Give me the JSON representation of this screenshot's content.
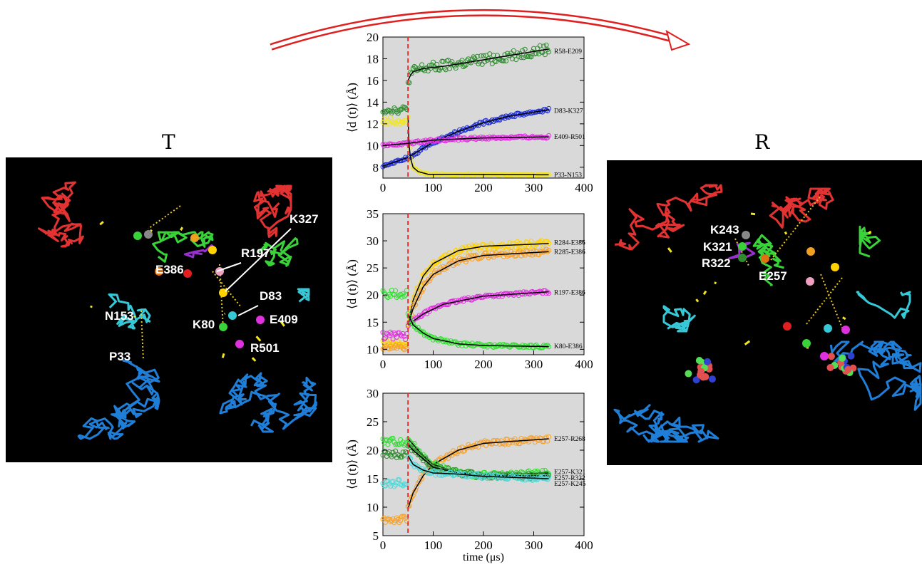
{
  "states": {
    "left": "T",
    "right": "R"
  },
  "left_labels": [
    {
      "text": "K327",
      "x": 398,
      "y": 92
    },
    {
      "text": "R197",
      "x": 330,
      "y": 140
    },
    {
      "text": "E386",
      "x": 210,
      "y": 163
    },
    {
      "text": "D83",
      "x": 356,
      "y": 200
    },
    {
      "text": "N153",
      "x": 139,
      "y": 228
    },
    {
      "text": "E409",
      "x": 370,
      "y": 233
    },
    {
      "text": "K80",
      "x": 262,
      "y": 240
    },
    {
      "text": "R501",
      "x": 343,
      "y": 273
    },
    {
      "text": "P33",
      "x": 145,
      "y": 285
    }
  ],
  "right_labels": [
    {
      "text": "K243",
      "x": 145,
      "y": 103
    },
    {
      "text": "K321",
      "x": 135,
      "y": 127
    },
    {
      "text": "R322",
      "x": 133,
      "y": 150
    },
    {
      "text": "E257",
      "x": 213,
      "y": 168
    }
  ],
  "colors": {
    "green_dark": "#2e8b2e",
    "blue": "#1f2fd6",
    "magenta": "#e030e0",
    "yellow": "#f2e622",
    "yellow2": "#ffd200",
    "orange": "#f6a12a",
    "lime": "#33dd33",
    "cyan": "#4fd8d8",
    "plot_bg": "#d9d9d9",
    "dash": "#e03030"
  },
  "chart_data": [
    {
      "type": "scatter",
      "xlim": [
        0,
        400
      ],
      "ylim": [
        7,
        20
      ],
      "yticks": [
        8,
        10,
        12,
        14,
        16,
        18,
        20
      ],
      "xticks": [
        0,
        100,
        200,
        300,
        400
      ],
      "xtick_labels": [
        "0",
        "100",
        "200",
        "300",
        "400"
      ],
      "ylabel": "⟨d (t)⟩ (Å)",
      "xlabel": "",
      "dashed_x": 50,
      "series": [
        {
          "name": "R58-E209",
          "label_y": 18.7,
          "color": "#2e8b2e",
          "fit": [
            [
              50,
              16
            ],
            [
              55,
              16.5
            ],
            [
              60,
              16.8
            ],
            [
              80,
              17.1
            ],
            [
              120,
              17.3
            ],
            [
              200,
              17.9
            ],
            [
              330,
              18.9
            ]
          ],
          "pre": 13.3,
          "post_noise": 0.5
        },
        {
          "name": "D83-K327",
          "label_y": 13.2,
          "color": "#1f2fd6",
          "fit": [
            [
              0,
              8.1
            ],
            [
              50,
              8.9
            ],
            [
              100,
              10.3
            ],
            [
              150,
              11.3
            ],
            [
              200,
              12.1
            ],
            [
              250,
              12.7
            ],
            [
              330,
              13.3
            ]
          ],
          "pre": null,
          "post_noise": 0.15
        },
        {
          "name": "E409-R501",
          "label_y": 10.8,
          "color": "#e030e0",
          "fit": [
            [
              0,
              10.0
            ],
            [
              50,
              10.2
            ],
            [
              100,
              10.5
            ],
            [
              200,
              10.7
            ],
            [
              330,
              10.8
            ]
          ],
          "pre": null,
          "post_noise": 0.12
        },
        {
          "name": "P33-N153",
          "label_y": 7.3,
          "color": "#f2e622",
          "fit": [
            [
              50,
              12.6
            ],
            [
              52,
              10
            ],
            [
              55,
              8.8
            ],
            [
              60,
              8.0
            ],
            [
              70,
              7.6
            ],
            [
              90,
              7.35
            ],
            [
              330,
              7.3
            ]
          ],
          "pre": 12.3,
          "post_noise": 0.06
        }
      ]
    },
    {
      "type": "scatter",
      "xlim": [
        0,
        400
      ],
      "ylim": [
        9,
        35
      ],
      "yticks": [
        10,
        15,
        20,
        25,
        30,
        35
      ],
      "xticks": [
        0,
        100,
        200,
        300,
        400
      ],
      "xtick_labels": [
        "0",
        "100",
        "200",
        "300",
        "400"
      ],
      "ylabel": "⟨d (t)⟩ (Å)",
      "xlabel": "",
      "dashed_x": 50,
      "series": [
        {
          "name": "R284-E386",
          "label_y": 29.7,
          "color": "#ffd200",
          "fit": [
            [
              50,
              14.5
            ],
            [
              60,
              19
            ],
            [
              80,
              23.5
            ],
            [
              100,
              25.8
            ],
            [
              150,
              28.2
            ],
            [
              200,
              29.0
            ],
            [
              330,
              29.5
            ]
          ],
          "pre": 11.0,
          "post_noise": 0.6
        },
        {
          "name": "R285-E386",
          "label_y": 28.0,
          "color": "#f6a12a",
          "fit": [
            [
              50,
              14.5
            ],
            [
              60,
              17.5
            ],
            [
              80,
              21.5
            ],
            [
              100,
              23.8
            ],
            [
              150,
              26.3
            ],
            [
              200,
              27.3
            ],
            [
              330,
              28.0
            ]
          ],
          "pre": 10.5,
          "post_noise": 0.5
        },
        {
          "name": "R197-E386",
          "label_y": 20.5,
          "color": "#e030e0",
          "fit": [
            [
              50,
              14.5
            ],
            [
              80,
              16.5
            ],
            [
              120,
              18.3
            ],
            [
              200,
              19.8
            ],
            [
              330,
              20.6
            ]
          ],
          "pre": 12.5,
          "post_noise": 0.3
        },
        {
          "name": "K80-E386",
          "label_y": 10.6,
          "color": "#33dd33",
          "fit": [
            [
              50,
              16.5
            ],
            [
              60,
              14.5
            ],
            [
              80,
              13
            ],
            [
              100,
              12
            ],
            [
              150,
              11
            ],
            [
              200,
              10.7
            ],
            [
              330,
              10.5
            ]
          ],
          "pre": 20.2,
          "post_noise": 0.3
        }
      ]
    },
    {
      "type": "scatter",
      "xlim": [
        0,
        400
      ],
      "ylim": [
        5,
        30
      ],
      "yticks": [
        5,
        10,
        15,
        20,
        25,
        30
      ],
      "xticks": [
        0,
        100,
        200,
        300,
        400
      ],
      "xtick_labels": [
        "0",
        "100",
        "200",
        "300",
        "400"
      ],
      "ylabel": "⟨d (t)⟩ (Å)",
      "xlabel": "time (μs)",
      "dashed_x": 50,
      "series": [
        {
          "name": "E257-R268",
          "label_y": 22.0,
          "color": "#f6a12a",
          "fit": [
            [
              50,
              9.8
            ],
            [
              60,
              12.5
            ],
            [
              80,
              15.5
            ],
            [
              100,
              17.5
            ],
            [
              150,
              20
            ],
            [
              200,
              21.2
            ],
            [
              330,
              22
            ]
          ],
          "pre": 7.8,
          "post_noise": 0.5
        },
        {
          "name": "E257-K321",
          "label_y": 16.2,
          "color": "#33dd33",
          "fit": [
            [
              50,
              22
            ],
            [
              60,
              21
            ],
            [
              80,
              19
            ],
            [
              100,
              17.5
            ],
            [
              150,
              16
            ],
            [
              200,
              15.6
            ],
            [
              330,
              16
            ]
          ],
          "pre": 21.5,
          "post_noise": 0.5
        },
        {
          "name": "E257-R322",
          "label_y": 15.1,
          "color": "#2e8b2e",
          "fit": [
            [
              50,
              21
            ],
            [
              60,
              20
            ],
            [
              80,
              18.5
            ],
            [
              100,
              17
            ],
            [
              150,
              16
            ],
            [
              200,
              15.5
            ],
            [
              330,
              15.5
            ]
          ],
          "pre": 19.3,
          "post_noise": 0.5
        },
        {
          "name": "E257-K245",
          "label_y": 14.1,
          "color": "#4fd8d8",
          "fit": [
            [
              50,
              19
            ],
            [
              60,
              17.5
            ],
            [
              80,
              16.5
            ],
            [
              100,
              16
            ],
            [
              150,
              15.8
            ],
            [
              200,
              15.4
            ],
            [
              330,
              15
            ]
          ],
          "pre": 14.2,
          "post_noise": 0.4
        }
      ]
    }
  ]
}
